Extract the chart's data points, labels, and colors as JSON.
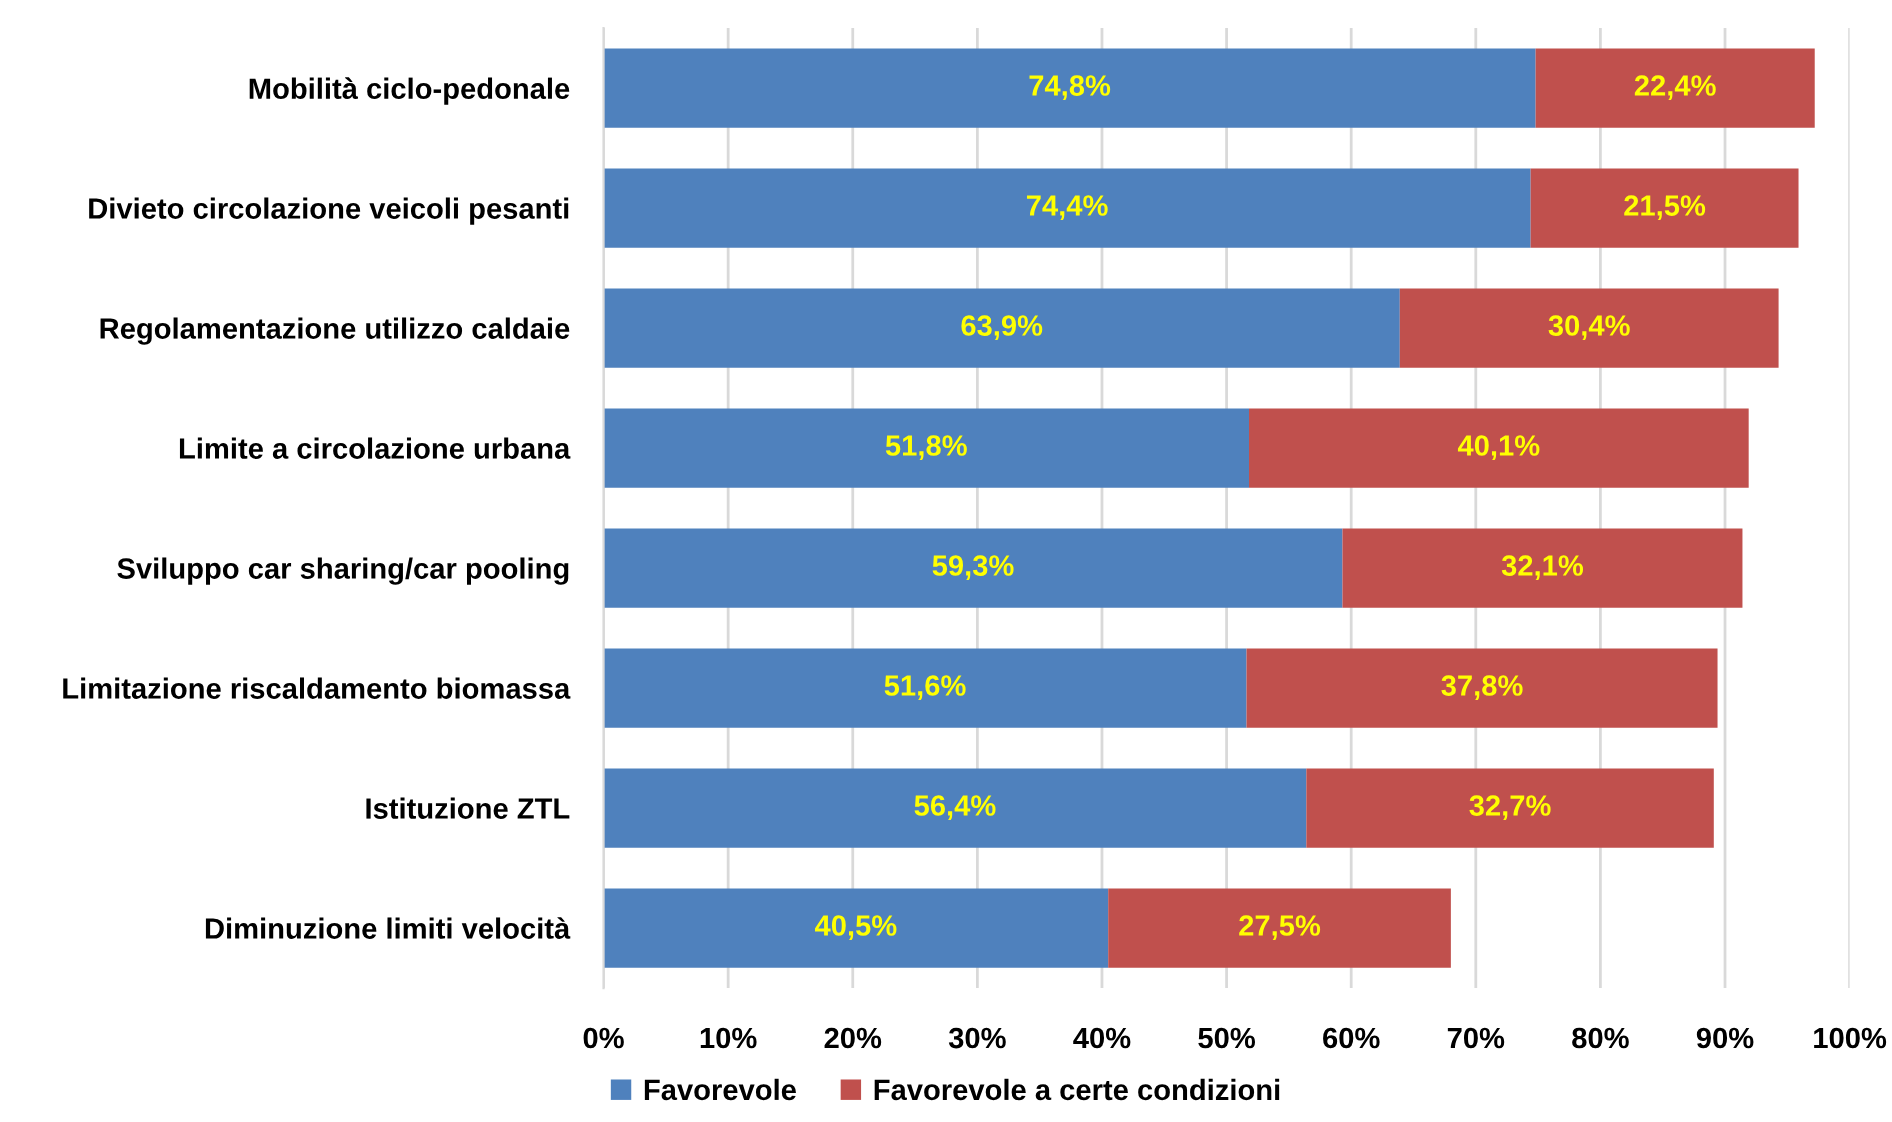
{
  "chart_data": {
    "type": "bar",
    "orientation": "horizontal",
    "stacked": true,
    "categories": [
      "Mobilità ciclo-pedonale",
      "Divieto circolazione veicoli pesanti",
      "Regolamentazione utilizzo caldaie",
      "Limite a circolazione urbana",
      "Sviluppo car sharing/car pooling",
      "Limitazione riscaldamento biomassa",
      "Istituzione ZTL",
      "Diminuzione limiti velocità"
    ],
    "series": [
      {
        "name": "Favorevole",
        "color": "#4f81bd",
        "values": [
          74.8,
          74.4,
          63.9,
          51.8,
          59.3,
          51.6,
          56.4,
          40.5
        ],
        "value_labels": [
          "74,8%",
          "74,4%",
          "63,9%",
          "51,8%",
          "59,3%",
          "51,6%",
          "56,4%",
          "40,5%"
        ]
      },
      {
        "name": "Favorevole a certe condizioni",
        "color": "#c0504d",
        "values": [
          22.4,
          21.5,
          30.4,
          40.1,
          32.1,
          37.8,
          32.7,
          27.5
        ],
        "value_labels": [
          "22,4%",
          "21,5%",
          "30,4%",
          "40,1%",
          "32,1%",
          "37,8%",
          "32,7%",
          "27,5%"
        ]
      }
    ],
    "xlim": [
      0,
      100
    ],
    "xticks": [
      {
        "value": 0,
        "label": "0%"
      },
      {
        "value": 10,
        "label": "10%"
      },
      {
        "value": 20,
        "label": "20%"
      },
      {
        "value": 30,
        "label": "30%"
      },
      {
        "value": 40,
        "label": "40%"
      },
      {
        "value": 50,
        "label": "50%"
      },
      {
        "value": 60,
        "label": "60%"
      },
      {
        "value": 70,
        "label": "70%"
      },
      {
        "value": 80,
        "label": "80%"
      },
      {
        "value": 90,
        "label": "90%"
      },
      {
        "value": 100,
        "label": "100%"
      }
    ],
    "grid": "x",
    "legend": "bottom"
  }
}
